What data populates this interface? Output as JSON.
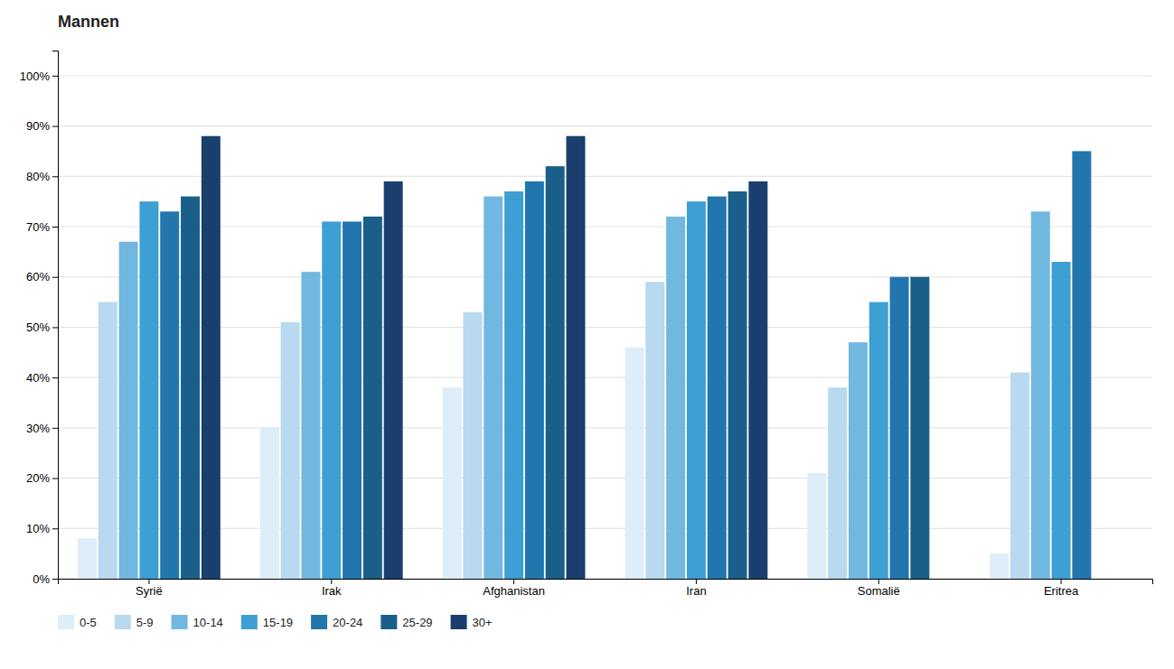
{
  "chart_data": {
    "type": "bar",
    "title": "Mannen",
    "categories": [
      "Syrië",
      "Irak",
      "Afghanistan",
      "Iran",
      "Somalië",
      "Eritrea"
    ],
    "series": [
      {
        "name": "0-5",
        "color": "#ddeef8",
        "values": [
          8,
          30,
          38,
          46,
          21,
          5
        ]
      },
      {
        "name": "5-9",
        "color": "#b8d9ef",
        "values": [
          55,
          51,
          53,
          59,
          38,
          41
        ]
      },
      {
        "name": "10-14",
        "color": "#71b8e0",
        "values": [
          67,
          61,
          76,
          72,
          47,
          73
        ]
      },
      {
        "name": "15-19",
        "color": "#3d9fd4",
        "values": [
          75,
          71,
          77,
          75,
          55,
          63
        ]
      },
      {
        "name": "20-24",
        "color": "#2176ae",
        "values": [
          73,
          71,
          79,
          76,
          60,
          85
        ]
      },
      {
        "name": "25-29",
        "color": "#1a5f8a",
        "values": [
          76,
          72,
          82,
          77,
          60,
          null
        ]
      },
      {
        "name": "30+",
        "color": "#1a3f6f",
        "values": [
          88,
          79,
          88,
          79,
          null,
          null
        ]
      }
    ],
    "ylim": [
      0,
      105
    ],
    "yticks": [
      {
        "value": 0,
        "label": "0%"
      },
      {
        "value": 10,
        "label": "10%"
      },
      {
        "value": 20,
        "label": "20%"
      },
      {
        "value": 30,
        "label": "30%"
      },
      {
        "value": 40,
        "label": "40%"
      },
      {
        "value": 50,
        "label": "50%"
      },
      {
        "value": 60,
        "label": "60%"
      },
      {
        "value": 70,
        "label": "70%"
      },
      {
        "value": 80,
        "label": "80%"
      },
      {
        "value": 90,
        "label": "90%"
      },
      {
        "value": 100,
        "label": "100%"
      }
    ],
    "grid": true,
    "legend": "bottom-left"
  }
}
